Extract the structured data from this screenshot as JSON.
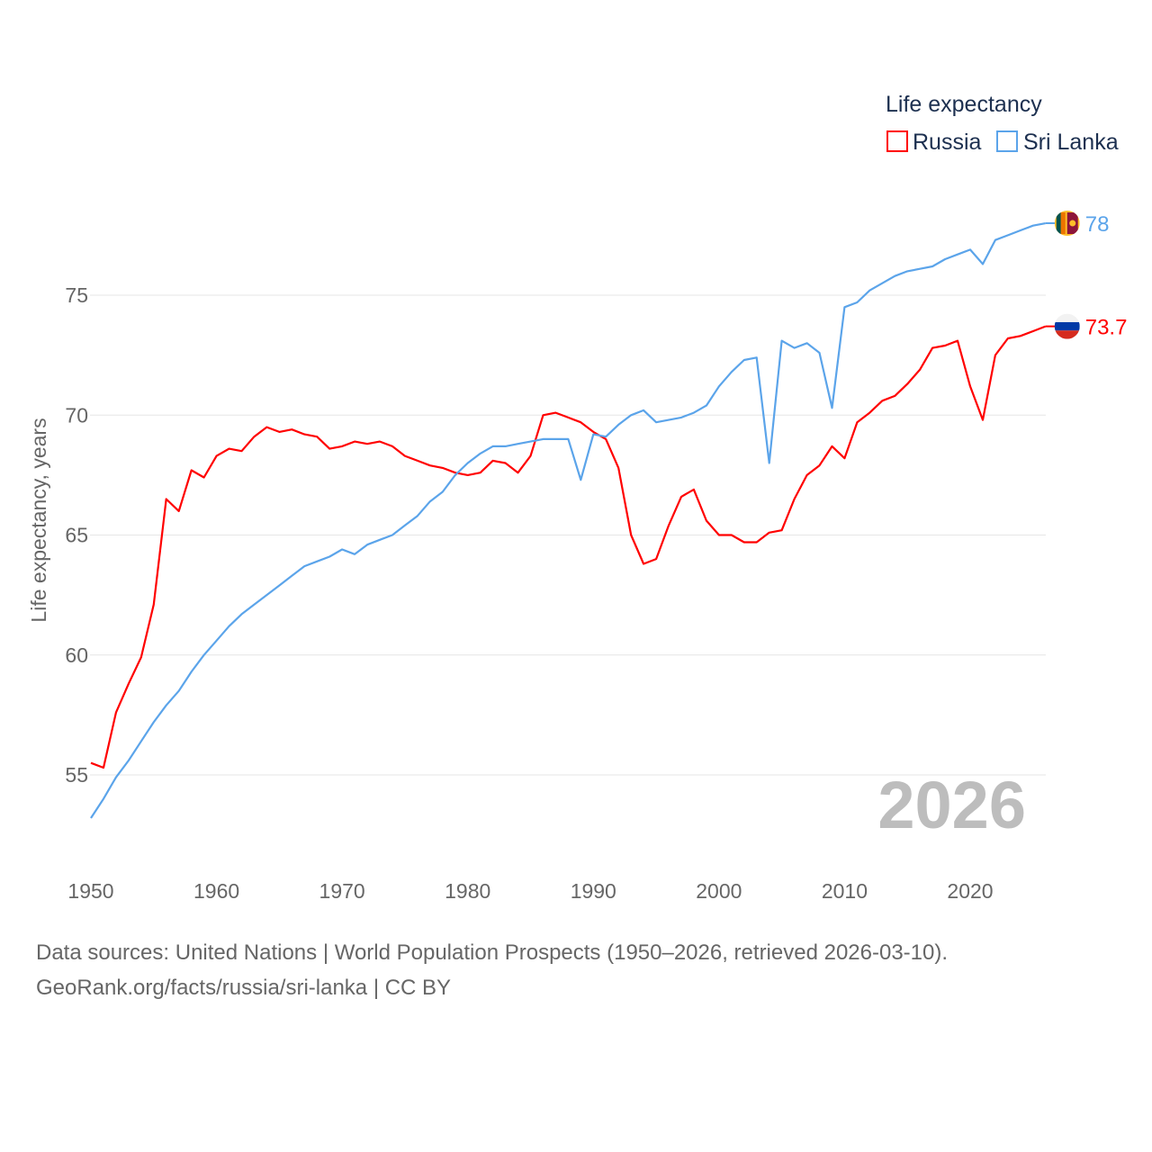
{
  "chart_data": {
    "type": "line",
    "title": "",
    "xlabel": "",
    "ylabel": "Life expectancy, years",
    "xlim": [
      1950,
      2026
    ],
    "ylim": [
      52.6,
      80
    ],
    "x_ticks": [
      1950,
      1960,
      1970,
      1980,
      1990,
      2000,
      2010,
      2020
    ],
    "y_ticks": [
      55,
      60,
      65,
      70,
      75
    ],
    "grid": true,
    "legend": {
      "title": "Life expectancy",
      "position": "top-right"
    },
    "watermark_year": "2026",
    "x": [
      1950,
      1951,
      1952,
      1953,
      1954,
      1955,
      1956,
      1957,
      1958,
      1959,
      1960,
      1961,
      1962,
      1963,
      1964,
      1965,
      1966,
      1967,
      1968,
      1969,
      1970,
      1971,
      1972,
      1973,
      1974,
      1975,
      1976,
      1977,
      1978,
      1979,
      1980,
      1981,
      1982,
      1983,
      1984,
      1985,
      1986,
      1987,
      1988,
      1989,
      1990,
      1991,
      1992,
      1993,
      1994,
      1995,
      1996,
      1997,
      1998,
      1999,
      2000,
      2001,
      2002,
      2003,
      2004,
      2005,
      2006,
      2007,
      2008,
      2009,
      2010,
      2011,
      2012,
      2013,
      2014,
      2015,
      2016,
      2017,
      2018,
      2019,
      2020,
      2021,
      2022,
      2023,
      2024,
      2025,
      2026
    ],
    "series": [
      {
        "name": "Russia",
        "color": "#ff0000",
        "end_label": "73.7",
        "values": [
          55.5,
          55.3,
          57.6,
          58.8,
          59.9,
          62.1,
          66.5,
          66.0,
          67.7,
          67.4,
          68.3,
          68.6,
          68.5,
          69.1,
          69.5,
          69.3,
          69.4,
          69.2,
          69.1,
          68.6,
          68.7,
          68.9,
          68.8,
          68.9,
          68.7,
          68.3,
          68.1,
          67.9,
          67.8,
          67.6,
          67.5,
          67.6,
          68.1,
          68.0,
          67.6,
          68.3,
          70.0,
          70.1,
          69.9,
          69.7,
          69.3,
          69.0,
          67.8,
          65.0,
          63.8,
          64.0,
          65.4,
          66.6,
          66.9,
          65.6,
          65.0,
          65.0,
          64.7,
          64.7,
          65.1,
          65.2,
          66.5,
          67.5,
          67.9,
          68.7,
          68.2,
          69.7,
          70.1,
          70.6,
          70.8,
          71.3,
          71.9,
          72.8,
          72.9,
          73.1,
          71.2,
          69.8,
          72.5,
          73.2,
          73.3,
          73.5,
          73.7
        ]
      },
      {
        "name": "Sri Lanka",
        "color": "#5ba4ea",
        "end_label": "78",
        "values": [
          53.2,
          54.0,
          54.9,
          55.6,
          56.4,
          57.2,
          57.9,
          58.5,
          59.3,
          60.0,
          60.6,
          61.2,
          61.7,
          62.1,
          62.5,
          62.9,
          63.3,
          63.7,
          63.9,
          64.1,
          64.4,
          64.2,
          64.6,
          64.8,
          65.0,
          65.4,
          65.8,
          66.4,
          66.8,
          67.5,
          68.0,
          68.4,
          68.7,
          68.7,
          68.8,
          68.9,
          69.0,
          69.0,
          69.0,
          67.3,
          69.2,
          69.1,
          69.6,
          70.0,
          70.2,
          69.7,
          69.8,
          69.9,
          70.1,
          70.4,
          71.2,
          71.8,
          72.3,
          72.4,
          68.0,
          73.1,
          72.8,
          73.0,
          72.6,
          70.3,
          74.5,
          74.7,
          75.2,
          75.5,
          75.8,
          76.0,
          76.1,
          76.2,
          76.5,
          76.7,
          76.9,
          76.3,
          77.3,
          77.5,
          77.7,
          77.9,
          78.0
        ]
      }
    ]
  },
  "footer": {
    "line1": "Data sources: United Nations | World Population Prospects (1950–2026, retrieved 2026-03-10).",
    "line2": "GeoRank.org/facts/russia/sri-lanka | CC BY"
  }
}
